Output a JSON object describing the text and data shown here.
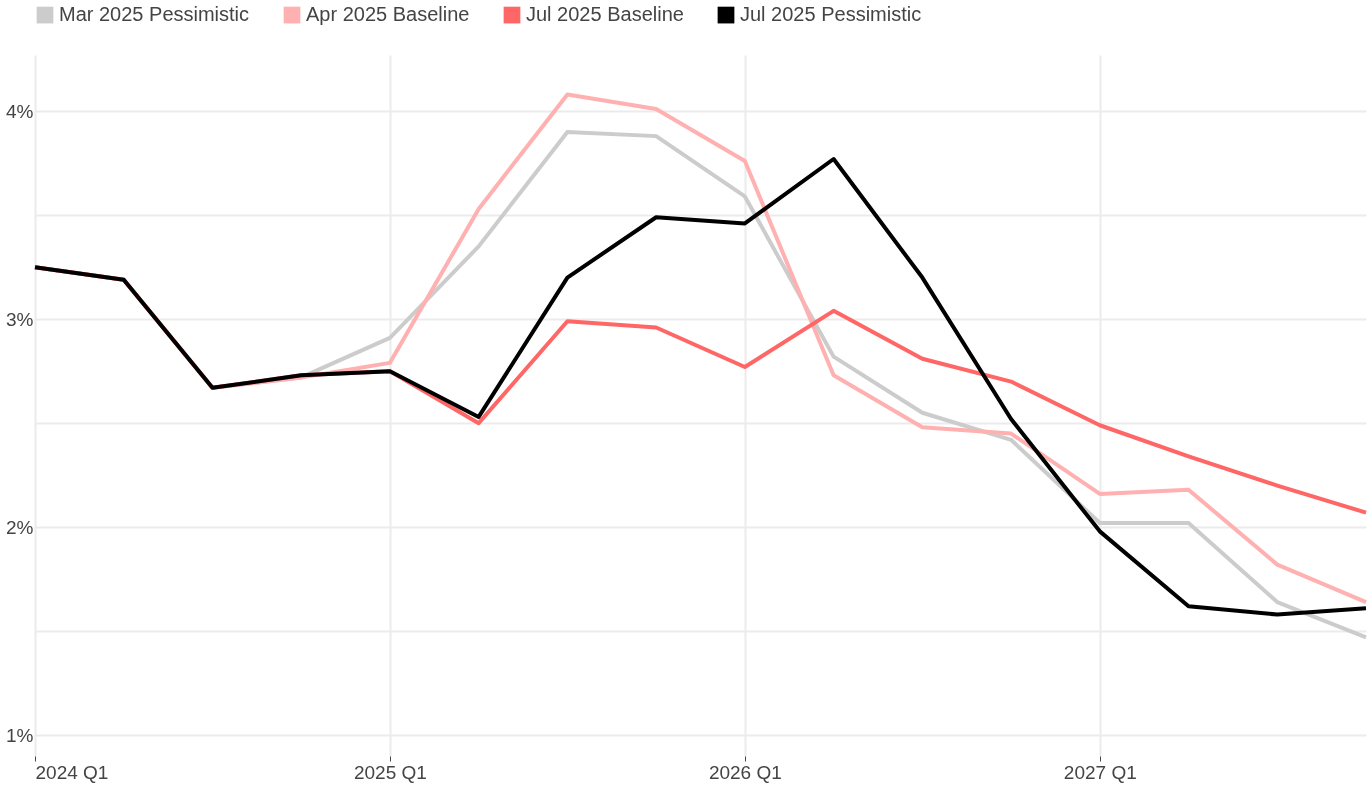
{
  "chart_data": {
    "type": "line",
    "categories": [
      "2024 Q1",
      null,
      null,
      null,
      "2025 Q1",
      null,
      null,
      null,
      "2026 Q1",
      null,
      null,
      null,
      "2027 Q1",
      null,
      null,
      null
    ],
    "series": [
      {
        "name": "Mar 2025 Pessimistic",
        "color": "#cccccc",
        "values": [
          3.25,
          3.19,
          2.67,
          2.72,
          2.91,
          3.35,
          3.9,
          3.88,
          3.59,
          2.82,
          2.55,
          2.42,
          2.02,
          2.02,
          1.64,
          1.47
        ]
      },
      {
        "name": "Apr 2025 Baseline",
        "color": "#ffb0b0",
        "values": [
          3.25,
          3.19,
          2.67,
          2.72,
          2.79,
          3.53,
          4.08,
          4.01,
          3.76,
          2.73,
          2.48,
          2.45,
          2.16,
          2.18,
          1.82,
          1.64
        ]
      },
      {
        "name": "Jul 2025 Baseline",
        "color": "#ff6666",
        "values": [
          3.25,
          3.19,
          2.67,
          2.73,
          2.75,
          2.5,
          2.99,
          2.96,
          2.77,
          3.04,
          2.81,
          2.7,
          2.49,
          2.34,
          2.2,
          2.07
        ]
      },
      {
        "name": "Jul 2025 Pessimistic",
        "color": "#000000",
        "values": [
          3.25,
          3.19,
          2.67,
          2.73,
          2.75,
          2.53,
          3.2,
          3.49,
          3.46,
          3.77,
          3.2,
          2.52,
          1.98,
          1.62,
          1.58,
          1.61
        ]
      }
    ],
    "ylim": [
      0.9,
      4.27
    ],
    "yticks": [
      {
        "value": 1,
        "label": "1%"
      },
      {
        "value": 1.5,
        "label": null
      },
      {
        "value": 2,
        "label": "2%"
      },
      {
        "value": 2.5,
        "label": null
      },
      {
        "value": 3,
        "label": "3%"
      },
      {
        "value": 3.5,
        "label": null
      },
      {
        "value": 4,
        "label": "4%"
      }
    ],
    "grid": true,
    "legend": "top",
    "line_style": "solid",
    "marker": "none"
  }
}
